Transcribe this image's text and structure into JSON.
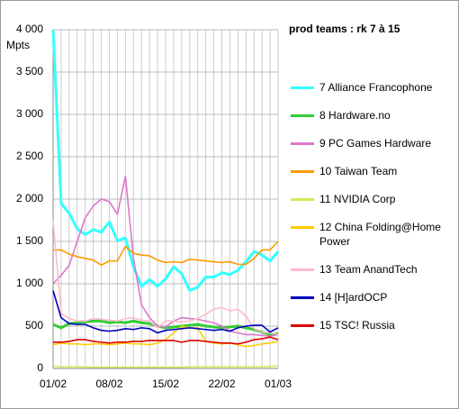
{
  "chart_data": {
    "type": "line",
    "title": "prod teams : rk 7 à 15",
    "y_label": "Mpts",
    "categories": [
      "01/02",
      null,
      null,
      null,
      null,
      null,
      null,
      "08/02",
      null,
      null,
      null,
      null,
      null,
      null,
      "15/02",
      null,
      null,
      null,
      null,
      null,
      null,
      "22/02",
      null,
      null,
      null,
      null,
      null,
      null,
      "01/03"
    ],
    "ylim": [
      0,
      4000
    ],
    "yticks": [
      0,
      500,
      {
        "value": 1000,
        "label": "1 000"
      },
      {
        "value": 1500,
        "label": "1 500"
      },
      {
        "value": 2000,
        "label": "2 000"
      },
      {
        "value": 2500,
        "label": "2 500"
      },
      {
        "value": 3000,
        "label": "3 000"
      },
      {
        "value": 3500,
        "label": "3 500"
      },
      {
        "value": 4000,
        "label": "4 000"
      }
    ],
    "grid": true,
    "series": [
      {
        "name": "7 Alliance Francophone",
        "color": "#33ffff",
        "values": [
          4000,
          1950,
          1830,
          1650,
          1580,
          1640,
          1610,
          1730,
          1510,
          1540,
          1200,
          970,
          1050,
          970,
          1060,
          1200,
          1120,
          920,
          960,
          1080,
          1080,
          1130,
          1110,
          1160,
          1260,
          1380,
          1340,
          1270,
          1380
        ]
      },
      {
        "name": "8 Hardware.no",
        "color": "#33cc33",
        "values": [
          520,
          480,
          530,
          540,
          550,
          560,
          560,
          540,
          550,
          540,
          560,
          540,
          530,
          500,
          480,
          490,
          500,
          510,
          520,
          500,
          490,
          480,
          490,
          500,
          480,
          460,
          430,
          400,
          410
        ]
      },
      {
        "name": "9 PC Games Hardware",
        "color": "#dd77cc",
        "values": [
          1000,
          1100,
          1220,
          1500,
          1780,
          1920,
          2000,
          1970,
          1820,
          2270,
          1300,
          750,
          600,
          500,
          490,
          560,
          600,
          590,
          580,
          560,
          540,
          500,
          440,
          420,
          400,
          400,
          390,
          380,
          400
        ]
      },
      {
        "name": "10 Taiwan Team",
        "color": "#ff9900",
        "values": [
          1400,
          1400,
          1350,
          1320,
          1300,
          1280,
          1220,
          1270,
          1270,
          1440,
          1360,
          1340,
          1330,
          1280,
          1250,
          1260,
          1250,
          1290,
          1280,
          1270,
          1260,
          1250,
          1260,
          1230,
          1230,
          1300,
          1400,
          1400,
          1500
        ]
      },
      {
        "name": "11 NVIDIA Corp",
        "color": "#ccee55",
        "values": [
          30,
          20,
          20,
          20,
          15,
          15,
          15,
          15,
          15,
          15,
          15,
          15,
          15,
          15,
          15,
          15,
          15,
          20,
          20,
          20,
          20,
          20,
          20,
          20,
          20,
          20,
          20,
          25,
          30
        ]
      },
      {
        "name": "12 China Folding@Home Power",
        "color": "#ffcc00",
        "values": [
          280,
          300,
          290,
          290,
          280,
          290,
          290,
          280,
          290,
          300,
          290,
          290,
          280,
          300,
          340,
          420,
          500,
          480,
          480,
          320,
          300,
          290,
          300,
          280,
          260,
          270,
          290,
          300,
          320
        ]
      },
      {
        "name": "13 Team AnandTech",
        "color": "#ffbbcc",
        "values": [
          1750,
          650,
          590,
          560,
          560,
          590,
          580,
          570,
          560,
          590,
          600,
          570,
          560,
          480,
          560,
          560,
          550,
          560,
          590,
          640,
          700,
          720,
          680,
          700,
          620,
          470,
          430,
          420,
          400
        ]
      },
      {
        "name": "14 [H]ardOCP",
        "color": "#0000bb",
        "values": [
          920,
          600,
          530,
          520,
          520,
          480,
          450,
          440,
          450,
          470,
          460,
          480,
          470,
          420,
          450,
          460,
          470,
          480,
          470,
          460,
          450,
          460,
          440,
          480,
          500,
          510,
          510,
          430,
          480
        ]
      },
      {
        "name": "15 TSC! Russia",
        "color": "#dd0000",
        "values": [
          310,
          310,
          320,
          340,
          340,
          320,
          310,
          300,
          310,
          310,
          320,
          320,
          330,
          330,
          330,
          330,
          310,
          330,
          330,
          320,
          310,
          300,
          300,
          290,
          310,
          340,
          350,
          370,
          340
        ]
      }
    ]
  }
}
